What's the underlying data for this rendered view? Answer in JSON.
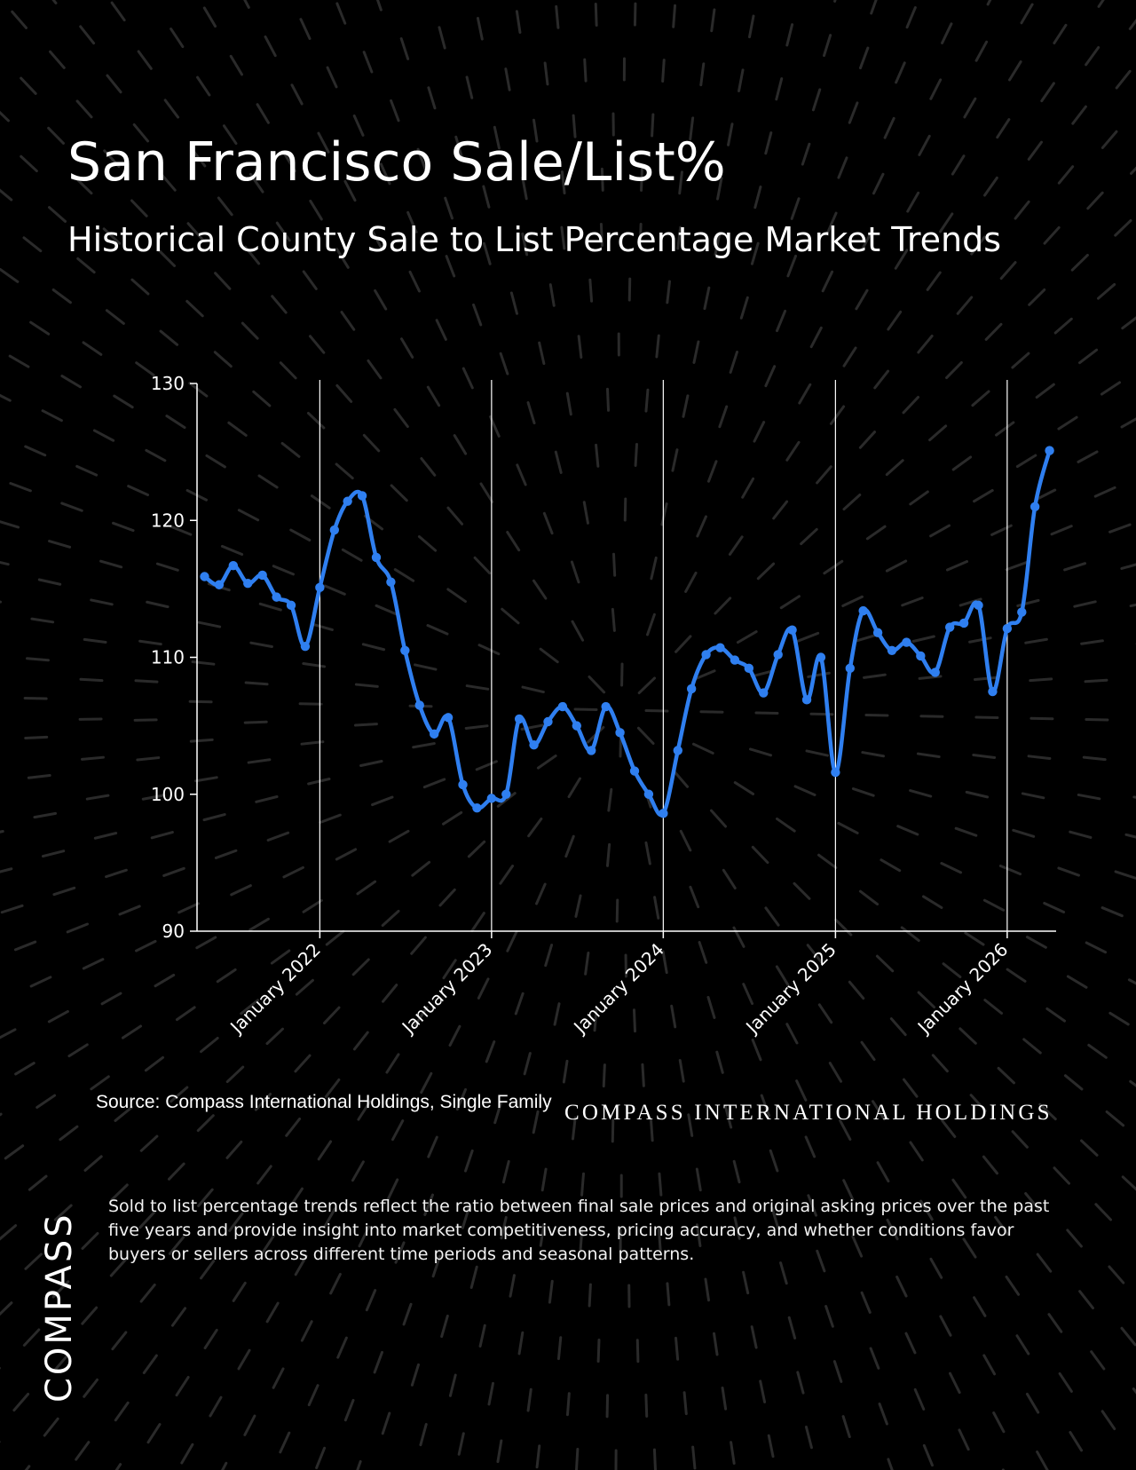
{
  "header": {
    "title": "San Francisco Sale/List%",
    "subtitle": "Historical County Sale to List Percentage Market Trends"
  },
  "footer": {
    "source": "Source: Compass International Holdings, Single Family",
    "brand_text": "COMPASS INTERNATIONAL HOLDINGS",
    "description": "Sold to list percentage trends reflect the ratio between final sale prices and original asking prices over the past five years and provide insight into market competitiveness, pricing accuracy, and whether conditions favor buyers or sellers across different time periods and seasonal patterns.",
    "logo": "COMPASS"
  },
  "colors": {
    "background": "#000000",
    "line": "#2f7ff0",
    "axis": "#ffffff",
    "pattern": "#2a2a2a"
  },
  "chart_data": {
    "type": "line",
    "title": "",
    "xlabel": "",
    "ylabel": "",
    "ylim": [
      90,
      130
    ],
    "yticks": [
      90,
      100,
      110,
      120,
      130
    ],
    "xlim": [
      "2021-04-15",
      "2026-04-15"
    ],
    "xticks": [
      "2022-01-01",
      "2023-01-01",
      "2024-01-01",
      "2025-01-01",
      "2026-01-01"
    ],
    "xtick_labels": [
      "January 2022",
      "January 2023",
      "January 2024",
      "January 2025",
      "January 2026"
    ],
    "grid": "vertical lines at x ticks",
    "series": [
      {
        "name": "",
        "x": [
          "2021-05-01",
          "2021-06-01",
          "2021-07-01",
          "2021-08-01",
          "2021-09-01",
          "2021-10-01",
          "2021-11-01",
          "2021-12-01",
          "2022-01-01",
          "2022-02-01",
          "2022-03-01",
          "2022-04-01",
          "2022-05-01",
          "2022-06-01",
          "2022-07-01",
          "2022-08-01",
          "2022-09-01",
          "2022-10-01",
          "2022-11-01",
          "2022-12-01",
          "2023-01-01",
          "2023-02-01",
          "2023-03-01",
          "2023-04-01",
          "2023-05-01",
          "2023-06-01",
          "2023-07-01",
          "2023-08-01",
          "2023-09-01",
          "2023-10-01",
          "2023-11-01",
          "2023-12-01",
          "2024-01-01",
          "2024-02-01",
          "2024-03-01",
          "2024-04-01",
          "2024-05-01",
          "2024-06-01",
          "2024-07-01",
          "2024-08-01",
          "2024-09-01",
          "2024-10-01",
          "2024-11-01",
          "2024-12-01",
          "2025-01-01",
          "2025-02-01",
          "2025-03-01",
          "2025-04-01",
          "2025-05-01",
          "2025-06-01",
          "2025-07-01",
          "2025-08-01",
          "2025-09-01",
          "2025-10-01",
          "2025-11-01",
          "2025-12-01",
          "2026-01-01",
          "2026-02-01",
          "2026-03-01",
          "2026-04-01"
        ],
        "values": [
          115.9,
          115.3,
          116.7,
          115.4,
          116.0,
          114.4,
          113.8,
          110.8,
          115.1,
          119.3,
          121.4,
          121.8,
          117.3,
          115.5,
          110.5,
          106.5,
          104.4,
          105.6,
          100.7,
          99.0,
          99.7,
          100.0,
          105.5,
          103.6,
          105.3,
          106.4,
          105.0,
          103.2,
          106.4,
          104.5,
          101.7,
          100.0,
          98.6,
          103.2,
          107.7,
          110.2,
          110.7,
          109.8,
          109.2,
          107.4,
          110.2,
          112.0,
          106.9,
          110.0,
          101.6,
          109.2,
          113.4,
          111.8,
          110.5,
          111.1,
          110.1,
          108.9,
          112.2,
          112.5,
          113.8,
          107.5,
          112.1,
          113.3,
          121.0,
          125.1
        ]
      }
    ]
  }
}
